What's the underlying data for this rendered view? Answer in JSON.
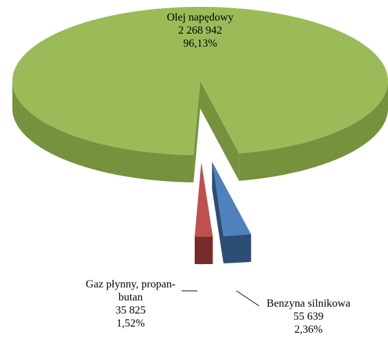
{
  "chart_data": {
    "type": "pie",
    "categories": [
      "Olej napędowy",
      "Benzyna silnikowa",
      "Gaz płynny, propan-butan"
    ],
    "values": [
      96.13,
      2.36,
      1.52
    ],
    "value_labels": [
      "96,13%",
      "2,36%",
      "1,52%"
    ],
    "amounts": [
      2268942,
      55639,
      35825
    ],
    "amount_labels": [
      "2 268 942",
      "55 639",
      "35 825"
    ],
    "colors": [
      "#9bbb59",
      "#4f81bd",
      "#c0504d"
    ],
    "wall_colors": [
      "#76923c",
      "#2c4d75",
      "#772c2a"
    ]
  }
}
